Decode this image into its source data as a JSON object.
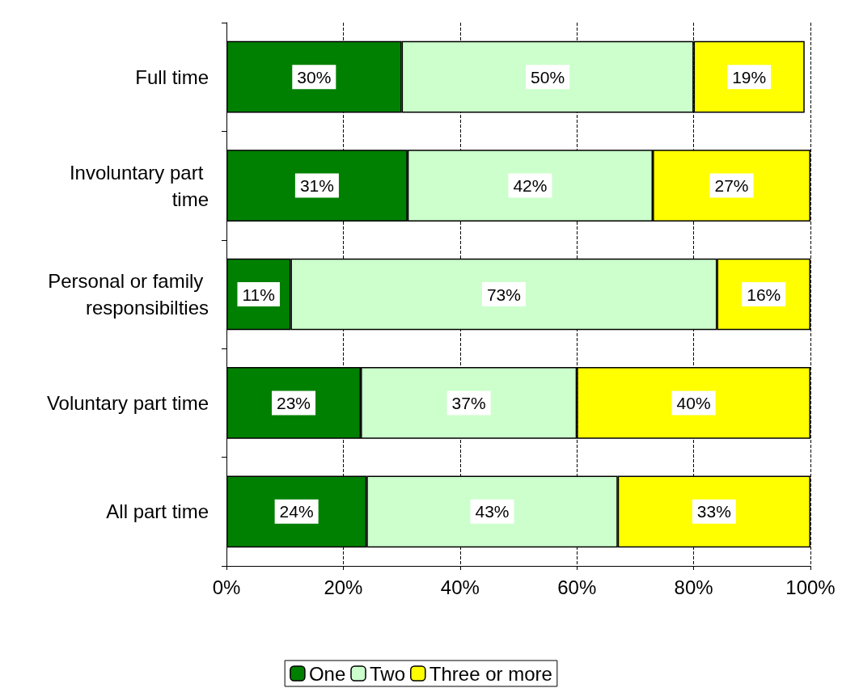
{
  "chart_data": {
    "type": "bar",
    "orientation": "horizontal",
    "stacked": true,
    "categories": [
      "Full time",
      "Involuntary part time",
      "Personal or family responsibilties",
      "Voluntary part time",
      "All part time"
    ],
    "series": [
      {
        "name": "One",
        "color": "#008000",
        "values": [
          30,
          31,
          11,
          23,
          24
        ],
        "value_labels": [
          "30%",
          "31%",
          "11%",
          "23%",
          "24%"
        ]
      },
      {
        "name": "Two",
        "color": "#ccffcc",
        "values": [
          50,
          42,
          73,
          37,
          43
        ],
        "value_labels": [
          "50%",
          "42%",
          "73%",
          "37%",
          "43%"
        ]
      },
      {
        "name": "Three or more",
        "color": "#ffff00",
        "values": [
          19,
          27,
          16,
          40,
          33
        ],
        "value_labels": [
          "19%",
          "27%",
          "16%",
          "40%",
          "33%"
        ]
      }
    ],
    "xlim": [
      0,
      100
    ],
    "xticks": [
      {
        "value": 0,
        "label": "0%"
      },
      {
        "value": 20,
        "label": "20%"
      },
      {
        "value": 40,
        "label": "40%"
      },
      {
        "value": 60,
        "label": "60%"
      },
      {
        "value": 80,
        "label": "80%"
      },
      {
        "value": 100,
        "label": "100%"
      }
    ],
    "grid": "x",
    "legend": "bottom"
  }
}
